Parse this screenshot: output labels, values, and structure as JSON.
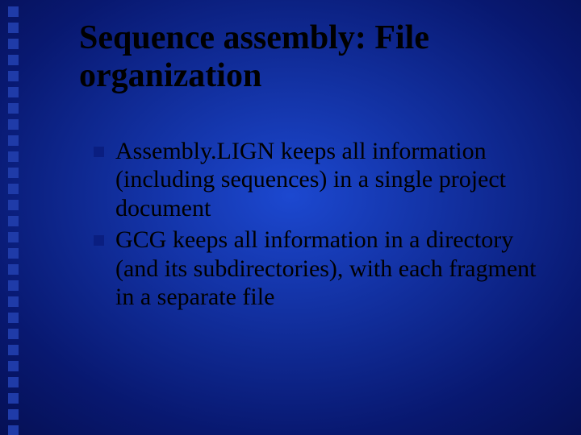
{
  "slide": {
    "title": "Sequence assembly: File organization",
    "title_fontsize": 42,
    "title_color": "#000000",
    "body_fontsize": 30,
    "body_color": "#000000",
    "bullet_color": "#0a1e80",
    "decor_square_color": "#1f3ba8",
    "decor_square_count": 27,
    "background_gradient": {
      "type": "radial",
      "stops": [
        "#1c48d0",
        "#1230a0",
        "#081870",
        "#040c48",
        "#00042c"
      ]
    },
    "items": [
      {
        "text": "Assembly.LIGN keeps all information (including sequences) in a single project document"
      },
      {
        "text": "GCG keeps all information in a directory (and its subdirectories), with each fragment in a separate file"
      }
    ]
  }
}
